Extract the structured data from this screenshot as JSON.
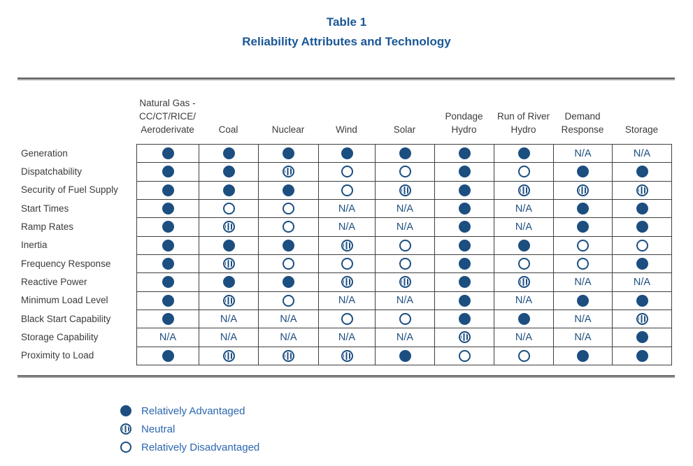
{
  "title": {
    "line1": "Table 1",
    "line2": "Reliability Attributes and Technology"
  },
  "colors": {
    "title_blue": "#1a5796",
    "symbol_blue": "#1c4e80",
    "legend_text_blue": "#2b67b0",
    "label_gray": "#3b3b3b"
  },
  "table": {
    "na_label": "N/A",
    "columns": [
      {
        "lines": [
          "Natural Gas -",
          "CC/CT/RICE/",
          "Aeroderivate"
        ]
      },
      {
        "lines": [
          "Coal"
        ]
      },
      {
        "lines": [
          "Nuclear"
        ]
      },
      {
        "lines": [
          "Wind"
        ]
      },
      {
        "lines": [
          "Solar"
        ]
      },
      {
        "lines": [
          "Pondage",
          "Hydro"
        ]
      },
      {
        "lines": [
          "Run of River",
          "Hydro"
        ]
      },
      {
        "lines": [
          "Demand",
          "Response"
        ]
      },
      {
        "lines": [
          "Storage"
        ]
      }
    ],
    "rows": [
      {
        "label": "Generation",
        "cells": [
          "A",
          "A",
          "A",
          "A",
          "A",
          "A",
          "A",
          "NA",
          "NA"
        ]
      },
      {
        "label": "Dispatchability",
        "cells": [
          "A",
          "A",
          "N",
          "D",
          "D",
          "A",
          "D",
          "A",
          "A"
        ]
      },
      {
        "label": "Security of Fuel Supply",
        "cells": [
          "A",
          "A",
          "A",
          "D",
          "N",
          "A",
          "N",
          "N",
          "N"
        ]
      },
      {
        "label": "Start Times",
        "cells": [
          "A",
          "D",
          "D",
          "NA",
          "NA",
          "A",
          "NA",
          "A",
          "A"
        ]
      },
      {
        "label": "Ramp Rates",
        "cells": [
          "A",
          "N",
          "D",
          "NA",
          "NA",
          "A",
          "NA",
          "A",
          "A"
        ]
      },
      {
        "label": "Inertia",
        "cells": [
          "A",
          "A",
          "A",
          "N",
          "D",
          "A",
          "A",
          "D",
          "D"
        ]
      },
      {
        "label": "Frequency Response",
        "cells": [
          "A",
          "N",
          "D",
          "D",
          "D",
          "A",
          "D",
          "D",
          "A"
        ]
      },
      {
        "label": "Reactive Power",
        "cells": [
          "A",
          "A",
          "A",
          "N",
          "N",
          "A",
          "N",
          "NA",
          "NA"
        ]
      },
      {
        "label": "Minimum Load Level",
        "cells": [
          "A",
          "N",
          "D",
          "NA",
          "NA",
          "A",
          "NA",
          "A",
          "A"
        ]
      },
      {
        "label": "Black Start Capability",
        "cells": [
          "A",
          "NA",
          "NA",
          "D",
          "D",
          "A",
          "A",
          "NA",
          "N"
        ]
      },
      {
        "label": "Storage Capability",
        "cells": [
          "NA",
          "NA",
          "NA",
          "NA",
          "NA",
          "N",
          "NA",
          "NA",
          "A"
        ]
      },
      {
        "label": "Proximity to Load",
        "cells": [
          "A",
          "N",
          "N",
          "N",
          "A",
          "D",
          "D",
          "A",
          "A"
        ]
      }
    ]
  },
  "legend": [
    {
      "code": "A",
      "label": "Relatively Advantaged"
    },
    {
      "code": "N",
      "label": "Neutral"
    },
    {
      "code": "D",
      "label": "Relatively Disadvantaged"
    }
  ]
}
